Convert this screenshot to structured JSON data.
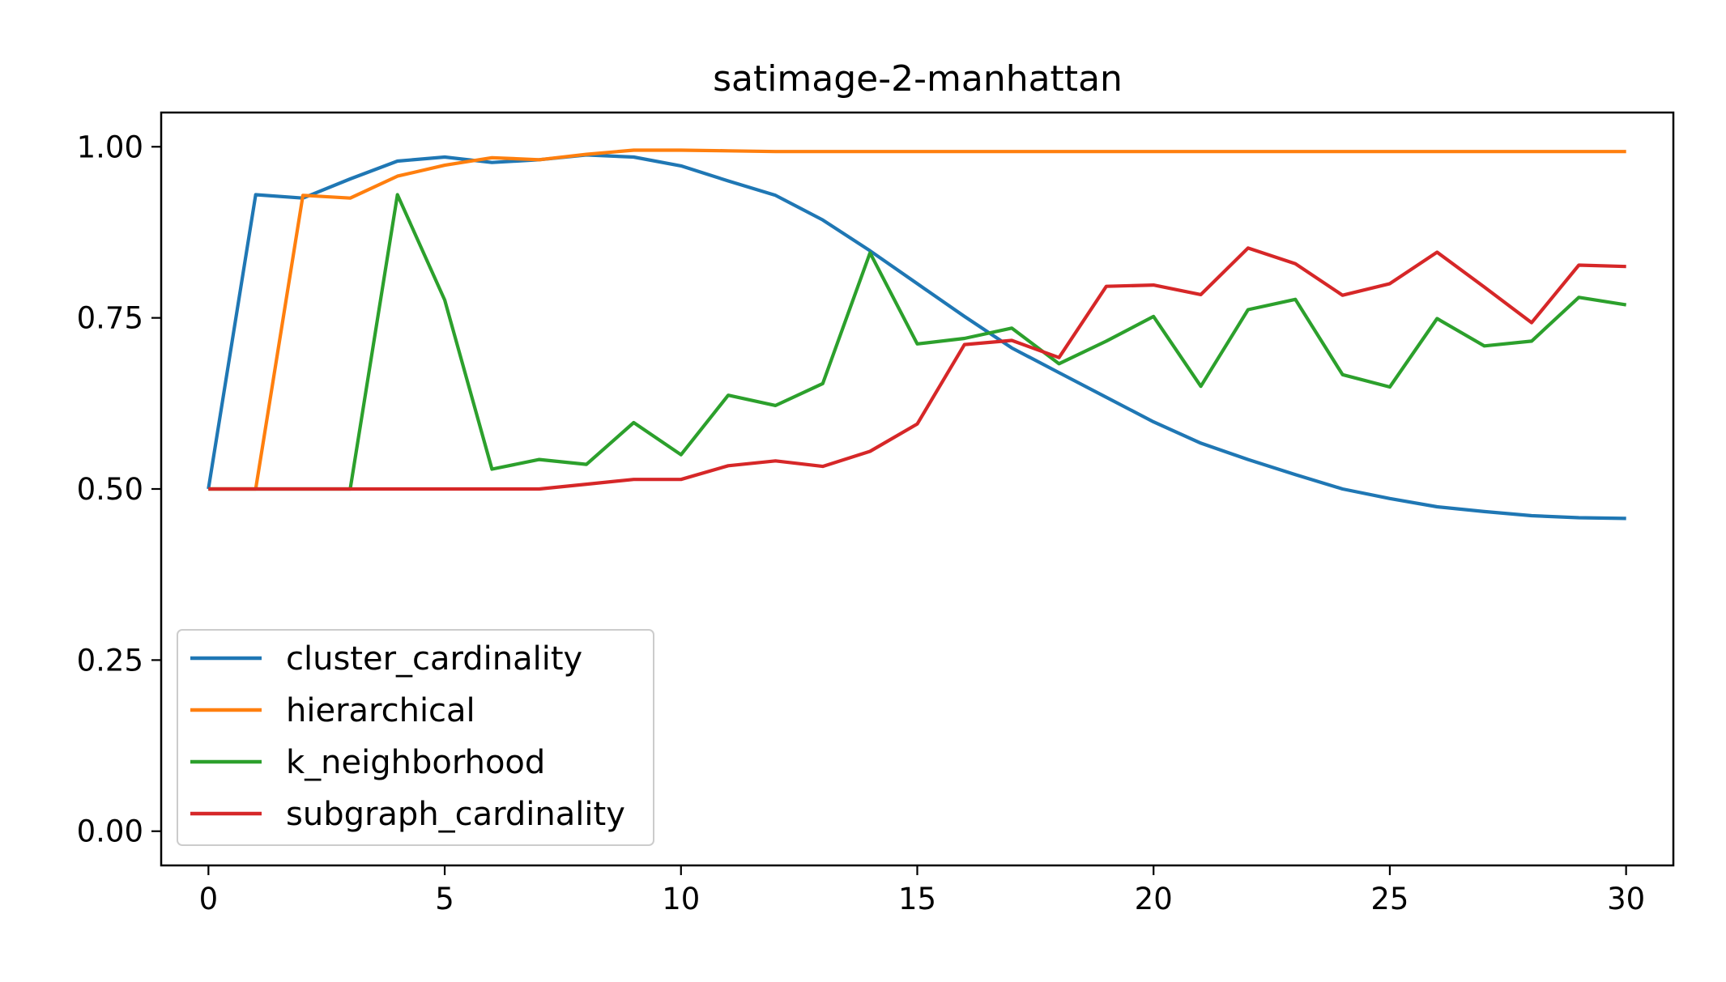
{
  "chart_data": {
    "type": "line",
    "title": "satimage-2-manhattan",
    "xlabel": "",
    "ylabel": "",
    "xlim": [
      -1,
      31
    ],
    "ylim": [
      -0.05,
      1.05
    ],
    "xticks": [
      0,
      5,
      10,
      15,
      20,
      25,
      30
    ],
    "xtick_labels": [
      "0",
      "5",
      "10",
      "15",
      "20",
      "25",
      "30"
    ],
    "yticks": [
      0.0,
      0.25,
      0.5,
      0.75,
      1.0
    ],
    "ytick_labels": [
      "0.00",
      "0.25",
      "0.50",
      "0.75",
      "1.00"
    ],
    "grid": false,
    "legend_position": "lower-left",
    "x": [
      0,
      1,
      2,
      3,
      4,
      5,
      6,
      7,
      8,
      9,
      10,
      11,
      12,
      13,
      14,
      15,
      16,
      17,
      18,
      19,
      20,
      21,
      22,
      23,
      24,
      25,
      26,
      27,
      28,
      29,
      30
    ],
    "series": [
      {
        "name": "cluster_cardinality",
        "color": "#1f77b4",
        "values": [
          0.5,
          0.93,
          0.925,
          0.953,
          0.979,
          0.985,
          0.977,
          0.981,
          0.988,
          0.985,
          0.972,
          0.95,
          0.929,
          0.893,
          0.848,
          0.8,
          0.752,
          0.706,
          0.67,
          0.634,
          0.598,
          0.567,
          0.543,
          0.521,
          0.5,
          0.486,
          0.474,
          0.467,
          0.461,
          0.458,
          0.457
        ]
      },
      {
        "name": "hierarchical",
        "color": "#ff7f0e",
        "values": [
          0.5,
          0.5,
          0.929,
          0.925,
          0.957,
          0.973,
          0.984,
          0.981,
          0.989,
          0.995,
          0.995,
          0.994,
          0.993,
          0.993,
          0.993,
          0.993,
          0.993,
          0.993,
          0.993,
          0.993,
          0.993,
          0.993,
          0.993,
          0.993,
          0.993,
          0.993,
          0.993,
          0.993,
          0.993,
          0.993,
          0.993
        ]
      },
      {
        "name": "k_neighborhood",
        "color": "#2ca02c",
        "values": [
          0.5,
          0.5,
          0.5,
          0.5,
          0.93,
          0.776,
          0.529,
          0.543,
          0.536,
          0.597,
          0.55,
          0.637,
          0.622,
          0.654,
          0.845,
          0.712,
          0.72,
          0.735,
          0.683,
          0.716,
          0.752,
          0.65,
          0.762,
          0.777,
          0.667,
          0.649,
          0.749,
          0.709,
          0.716,
          0.78,
          0.769
        ]
      },
      {
        "name": "subgraph_cardinality",
        "color": "#d62728",
        "values": [
          0.5,
          0.5,
          0.5,
          0.5,
          0.5,
          0.5,
          0.5,
          0.5,
          0.507,
          0.514,
          0.514,
          0.534,
          0.541,
          0.533,
          0.555,
          0.595,
          0.711,
          0.717,
          0.692,
          0.796,
          0.798,
          0.784,
          0.852,
          0.829,
          0.783,
          0.8,
          0.846,
          0.795,
          0.743,
          0.827,
          0.825
        ]
      }
    ]
  }
}
